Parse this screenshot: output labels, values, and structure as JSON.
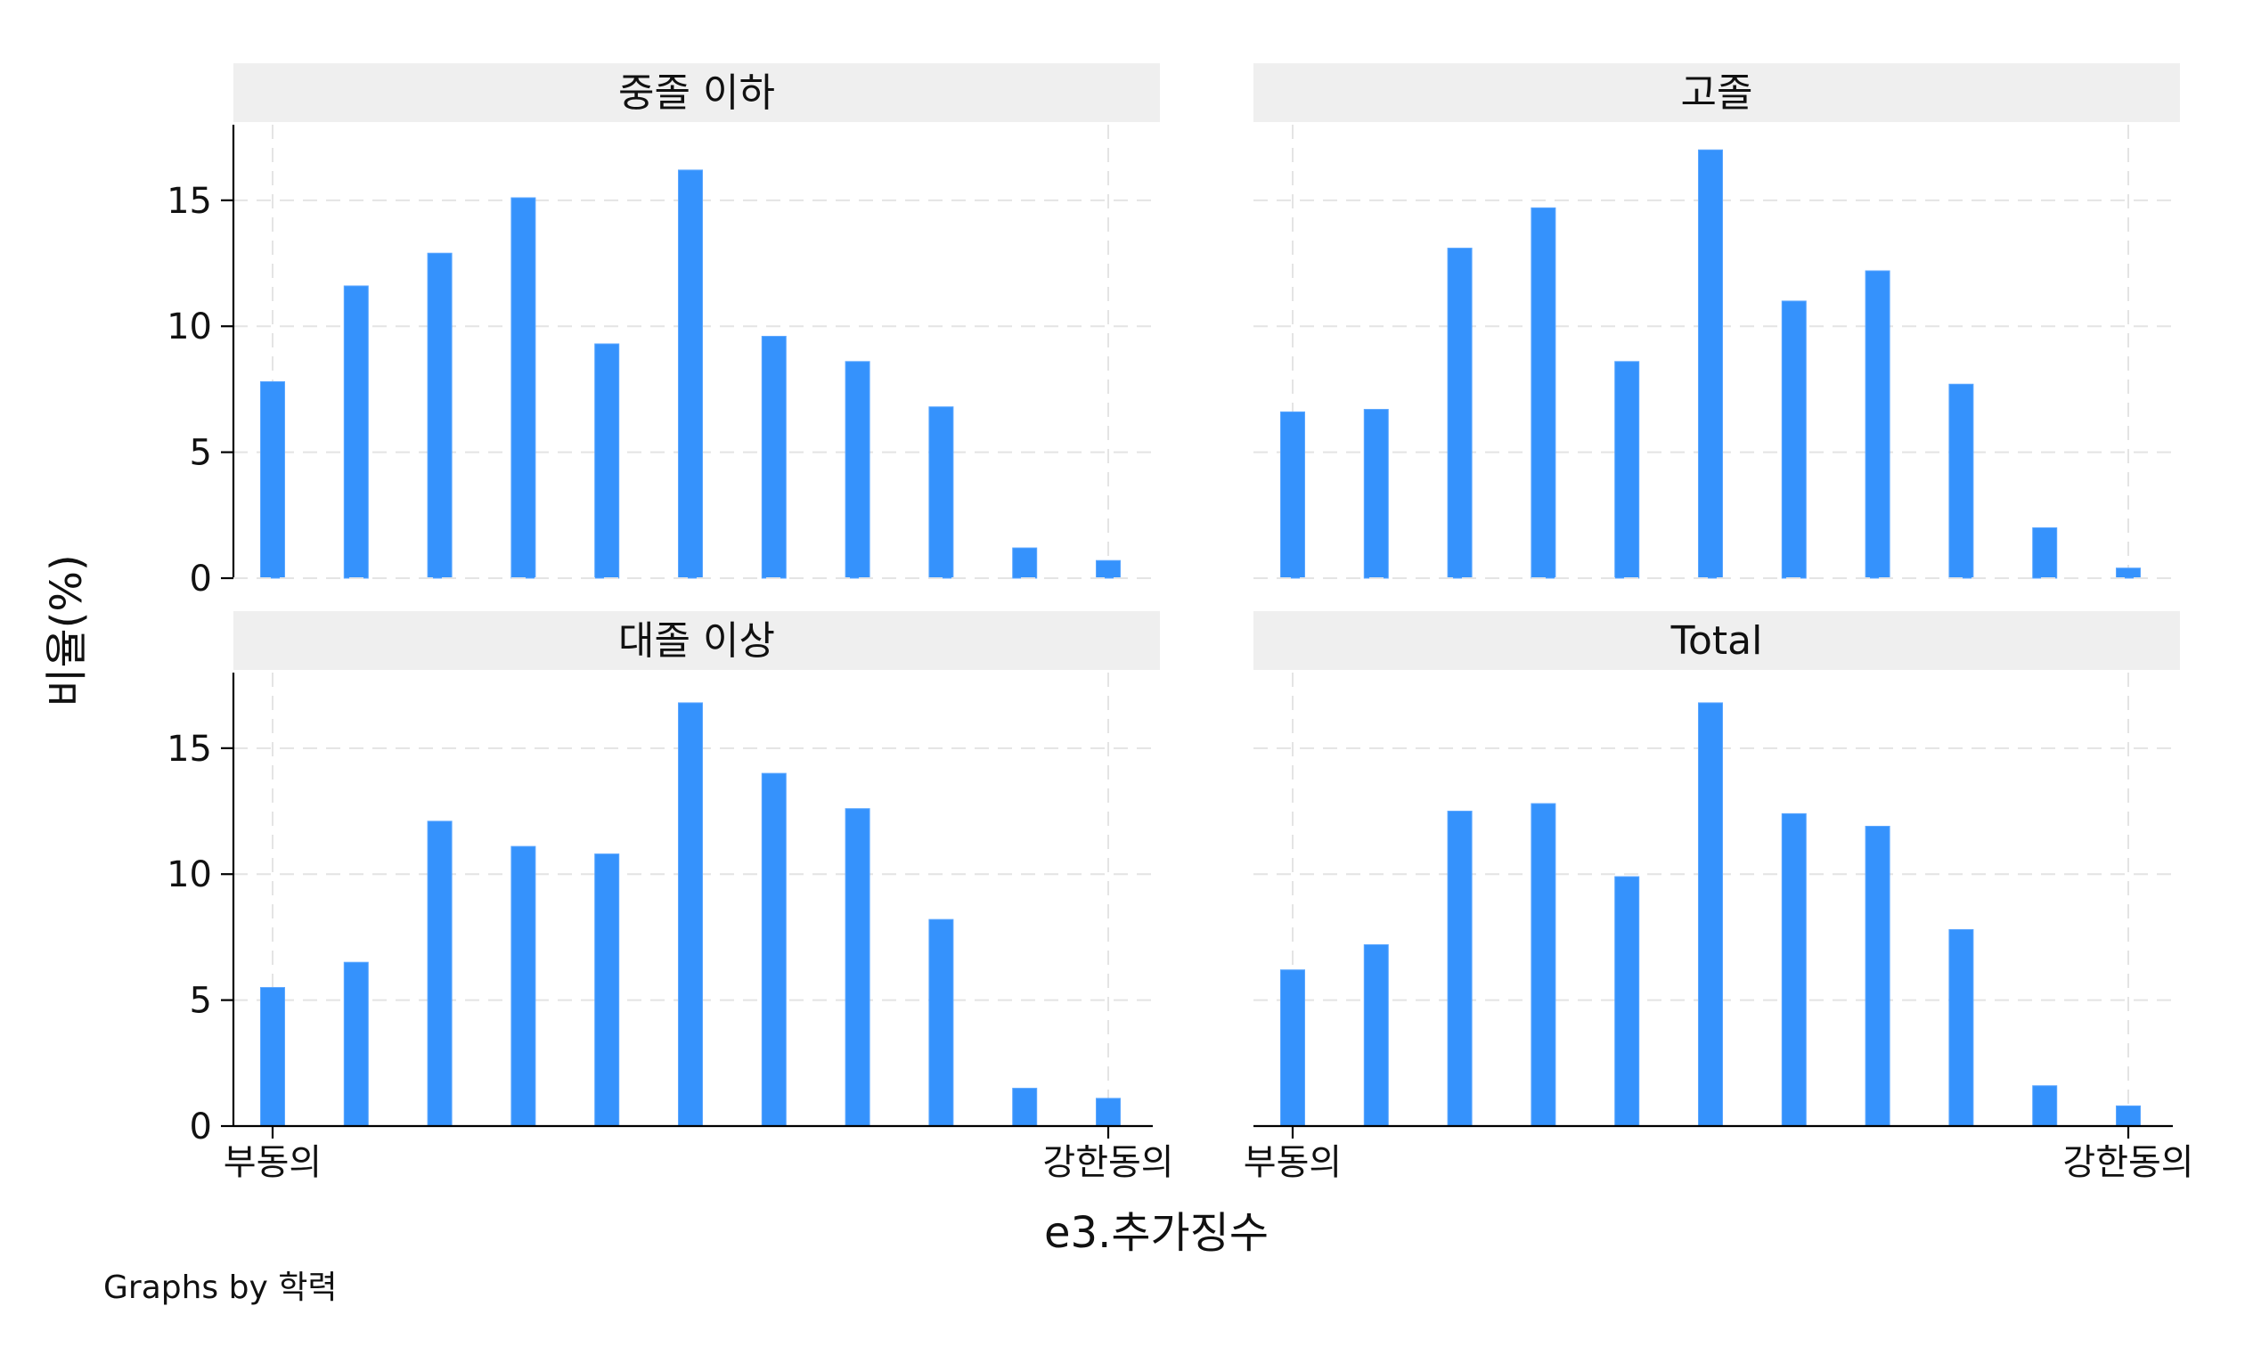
{
  "chart_data": {
    "type": "bar",
    "ylabel": "비율(%)",
    "xlabel": "e3.추가징수",
    "note": "Graphs by 학력",
    "ylim": [
      0,
      18
    ],
    "yticks": [
      0,
      5,
      10,
      15
    ],
    "xlim": [
      0,
      10
    ],
    "xticks": [
      {
        "value": 0,
        "label": "부동의"
      },
      {
        "value": 10,
        "label": "강한동의"
      }
    ],
    "bar_positions": [
      0,
      1,
      2,
      3,
      4,
      5,
      6,
      7,
      8,
      9,
      10
    ],
    "grid": true,
    "bar_color": "#3592fc",
    "panels": [
      {
        "title": "중졸 이하",
        "values": [
          7.8,
          11.6,
          12.9,
          15.1,
          9.3,
          16.2,
          9.6,
          8.6,
          6.8,
          1.2,
          0.7
        ]
      },
      {
        "title": "고졸",
        "values": [
          6.6,
          6.7,
          13.1,
          14.7,
          8.6,
          17.0,
          11.0,
          12.2,
          7.7,
          2.0,
          0.4
        ]
      },
      {
        "title": "대졸 이상",
        "values": [
          5.5,
          6.5,
          12.1,
          11.1,
          10.8,
          16.8,
          14.0,
          12.6,
          8.2,
          1.5,
          1.1
        ]
      },
      {
        "title": "Total",
        "values": [
          6.2,
          7.2,
          12.5,
          12.8,
          9.9,
          16.8,
          12.4,
          11.9,
          7.8,
          1.6,
          0.8
        ]
      }
    ]
  }
}
